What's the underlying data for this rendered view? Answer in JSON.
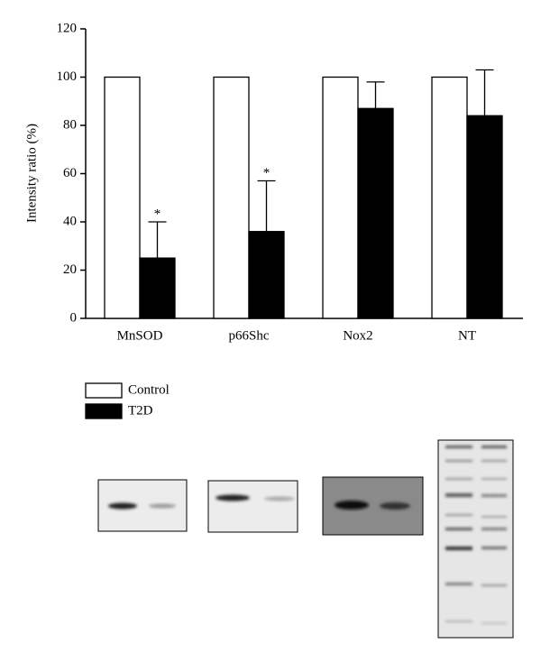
{
  "chart_data": {
    "type": "bar",
    "categories": [
      "MnSOD",
      "p66Shc",
      "Nox2",
      "NT"
    ],
    "y_label": "Intensity ratio (%)",
    "series": [
      {
        "name": "Control",
        "color": "#ffffff",
        "values": [
          100,
          100,
          100,
          100
        ]
      },
      {
        "name": "T2D",
        "color": "#000000",
        "values": [
          25,
          36,
          87,
          84
        ],
        "errors": [
          15,
          21,
          11,
          19
        ],
        "annotations": [
          "*",
          "*",
          null,
          null
        ]
      }
    ],
    "ylim": [
      0,
      120
    ],
    "yticks": [
      0,
      20,
      40,
      60,
      80,
      100,
      120
    ],
    "grid": false,
    "legend": "bottom-left"
  }
}
